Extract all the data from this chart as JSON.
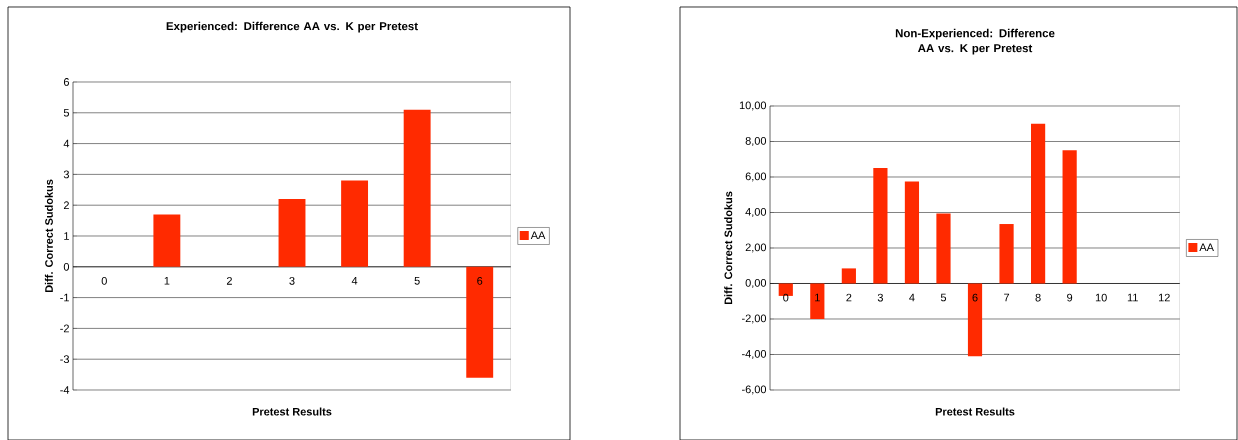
{
  "chart_data": [
    {
      "type": "bar",
      "title": "Experienced: Difference AA vs. K per Pretest",
      "xlabel": "Pretest Results",
      "ylabel": "Diff. Correct Sudokus",
      "categories": [
        "0",
        "1",
        "2",
        "3",
        "4",
        "5",
        "6"
      ],
      "series": [
        {
          "name": "AA",
          "color": "#ff2a00",
          "values": [
            null,
            1.7,
            null,
            2.2,
            2.8,
            5.1,
            -3.6
          ]
        }
      ],
      "ylim": [
        -4,
        6
      ],
      "yticks": [
        -4,
        -3,
        -2,
        -1,
        0,
        1,
        2,
        3,
        4,
        5,
        6
      ],
      "grid": "y",
      "legend": "right"
    },
    {
      "type": "bar",
      "title": "Non-Experienced: Difference AA vs. K per Pretest",
      "xlabel": "Pretest Results",
      "ylabel": "Diff. Correct Sudokus",
      "categories": [
        "0",
        "1",
        "2",
        "3",
        "4",
        "5",
        "6",
        "7",
        "8",
        "9",
        "10",
        "11",
        "12"
      ],
      "series": [
        {
          "name": "AA",
          "color": "#ff2a00",
          "values": [
            -0.7,
            -2.0,
            0.85,
            6.5,
            5.75,
            3.95,
            -4.1,
            3.35,
            9.0,
            7.5,
            null,
            null,
            null
          ]
        }
      ],
      "ylim": [
        -6,
        10
      ],
      "yticks": [
        {
          "value": -6,
          "label": "-6,00"
        },
        {
          "value": -4,
          "label": "-4,00"
        },
        {
          "value": -2,
          "label": "-2,00"
        },
        {
          "value": 0,
          "label": "0,00"
        },
        {
          "value": 2,
          "label": "2,00"
        },
        {
          "value": 4,
          "label": "4,00"
        },
        {
          "value": 6,
          "label": "6,00"
        },
        {
          "value": 8,
          "label": "8,00"
        },
        {
          "value": 10,
          "label": "10,00"
        }
      ],
      "grid": "y",
      "legend": "right"
    }
  ]
}
